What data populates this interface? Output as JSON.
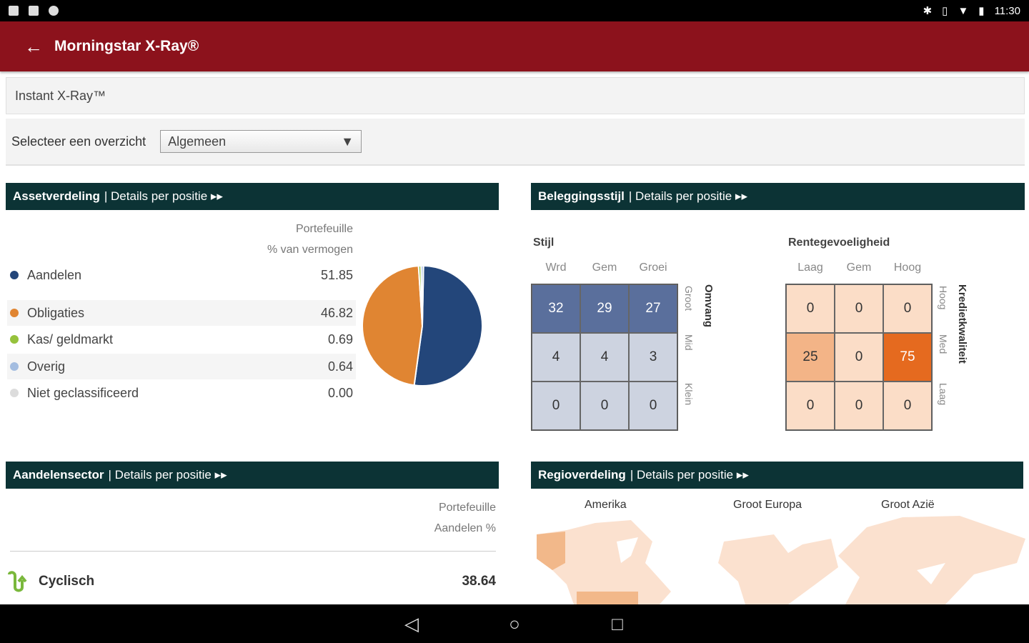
{
  "status": {
    "time": "11:30"
  },
  "app": {
    "title": "Morningstar X-Ray®"
  },
  "subhead": "Instant X-Ray™",
  "select": {
    "label": "Selecteer een overzicht",
    "value": "Algemeen"
  },
  "asset": {
    "title": "Assetverdeling",
    "link": "| Details per positie ▸▸",
    "col1": "Portefeuille",
    "col2": "% van vermogen",
    "items": [
      {
        "label": "Aandelen",
        "value": "51.85",
        "color": "#23467a"
      },
      {
        "label": "Obligaties",
        "value": "46.82",
        "color": "#e08532"
      },
      {
        "label": "Kas/ geldmarkt",
        "value": "0.69",
        "color": "#96c23c"
      },
      {
        "label": "Overig",
        "value": "0.64",
        "color": "#a4bde0"
      },
      {
        "label": "Niet geclassificeerd",
        "value": "0.00",
        "color": "#dcdcdc"
      }
    ]
  },
  "style": {
    "title": "Beleggingsstijl",
    "link": "| Details per positie ▸▸",
    "stijl": {
      "label": "Stijl",
      "cols": [
        "Wrd",
        "Gem",
        "Groei"
      ],
      "rows": [
        "Groot",
        "Mid",
        "Klein"
      ],
      "side_title": "Omvang",
      "values": [
        [
          32,
          29,
          27
        ],
        [
          4,
          4,
          3
        ],
        [
          0,
          0,
          0
        ]
      ]
    },
    "rente": {
      "label": "Rentegevoeligheid",
      "cols": [
        "Laag",
        "Gem",
        "Hoog"
      ],
      "rows": [
        "Hoog",
        "Med",
        "Laag"
      ],
      "side_title": "Kredietkwaliteit",
      "values": [
        [
          0,
          0,
          0
        ],
        [
          25,
          0,
          75
        ],
        [
          0,
          0,
          0
        ]
      ]
    }
  },
  "sector": {
    "title": "Aandelensector",
    "link": "| Details per positie ▸▸",
    "col1": "Portefeuille",
    "col2": "Aandelen %",
    "items": [
      {
        "label": "Cyclisch",
        "value": "38.64"
      }
    ]
  },
  "region": {
    "title": "Regioverdeling",
    "link": "| Details per positie ▸▸",
    "regions": [
      "Amerika",
      "Groot Europa",
      "Groot Azië"
    ]
  },
  "nav": {
    "back": "◁",
    "home": "○",
    "recent": "□"
  }
}
